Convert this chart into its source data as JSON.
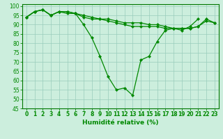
{
  "xlabel": "Humidité relative (%)",
  "background_color": "#cceedd",
  "grid_color": "#99ccbb",
  "line_color": "#008800",
  "xlim": [
    -0.5,
    23.5
  ],
  "ylim": [
    45,
    101
  ],
  "yticks": [
    45,
    50,
    55,
    60,
    65,
    70,
    75,
    80,
    85,
    90,
    95,
    100
  ],
  "xticks": [
    0,
    1,
    2,
    3,
    4,
    5,
    6,
    7,
    8,
    9,
    10,
    11,
    12,
    13,
    14,
    15,
    16,
    17,
    18,
    19,
    20,
    21,
    22,
    23
  ],
  "series1": [
    94,
    97,
    98,
    95,
    97,
    97,
    96,
    90,
    83,
    73,
    62,
    55,
    56,
    52,
    71,
    73,
    81,
    87,
    88,
    87,
    89,
    93,
    91,
    91
  ],
  "series2": [
    94,
    97,
    98,
    95,
    97,
    97,
    96,
    94,
    93,
    93,
    92,
    91,
    90,
    89,
    89,
    89,
    89,
    88,
    88,
    88,
    88,
    89,
    93,
    91
  ],
  "series3": [
    94,
    97,
    98,
    95,
    97,
    96,
    96,
    95,
    94,
    93,
    93,
    92,
    91,
    91,
    91,
    90,
    90,
    89,
    88,
    88,
    88,
    89,
    92,
    91
  ],
  "xlabel_fontsize": 6.5,
  "tick_fontsize": 5.5
}
